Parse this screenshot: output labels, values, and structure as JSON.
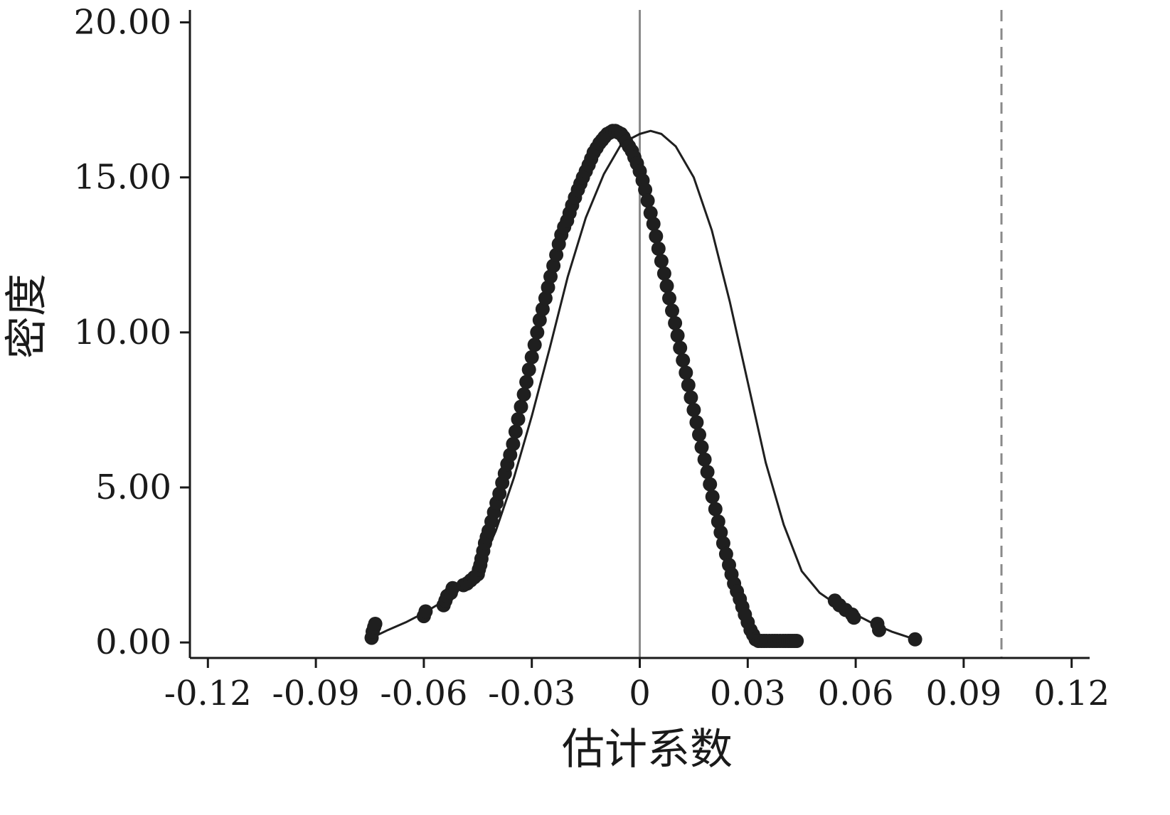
{
  "chart_data": {
    "type": "scatter",
    "xlabel": "估计系数",
    "ylabel": "密度",
    "xlim": [
      -0.125,
      0.125
    ],
    "ylim": [
      -0.5,
      20.4
    ],
    "x_ticks": [
      {
        "value": -0.12,
        "label": "-0.12"
      },
      {
        "value": -0.09,
        "label": "-0.09"
      },
      {
        "value": -0.06,
        "label": "-0.06"
      },
      {
        "value": -0.03,
        "label": "-0.03"
      },
      {
        "value": 0,
        "label": "0"
      },
      {
        "value": 0.03,
        "label": "0.03"
      },
      {
        "value": 0.06,
        "label": "0.06"
      },
      {
        "value": 0.09,
        "label": "0.09"
      },
      {
        "value": 0.12,
        "label": "0.12"
      }
    ],
    "y_ticks": [
      {
        "value": 0,
        "label": "0.00"
      },
      {
        "value": 5,
        "label": "5.00"
      },
      {
        "value": 10,
        "label": "10.00"
      },
      {
        "value": 15,
        "label": "15.00"
      },
      {
        "value": 20,
        "label": "20.00"
      }
    ],
    "reference_lines": [
      {
        "name": "zero-line",
        "x": 0,
        "style": "solid",
        "color": "#8a8a8a"
      },
      {
        "name": "estimate-line",
        "x": 0.1005,
        "style": "dashed",
        "color": "#8a8a8a"
      }
    ],
    "series": [
      {
        "marker": "circle",
        "color": "#1f1f1f",
        "x": [
          -0.0745,
          -0.0742,
          -0.0738,
          -0.0735,
          -0.06,
          -0.0595,
          -0.0545,
          -0.054,
          -0.0535,
          -0.0525,
          -0.052,
          -0.049,
          -0.048,
          -0.047,
          -0.046,
          -0.045,
          -0.0447,
          -0.0443,
          -0.044,
          -0.0435,
          -0.043,
          -0.0425,
          -0.042,
          -0.0412,
          -0.0405,
          -0.0398,
          -0.039,
          -0.0382,
          -0.0375,
          -0.0368,
          -0.036,
          -0.0352,
          -0.0345,
          -0.0338,
          -0.033,
          -0.0322,
          -0.0315,
          -0.0308,
          -0.03,
          -0.0292,
          -0.0285,
          -0.0278,
          -0.027,
          -0.0262,
          -0.0255,
          -0.0248,
          -0.024,
          -0.0232,
          -0.0225,
          -0.0218,
          -0.021,
          -0.0202,
          -0.0195,
          -0.0188,
          -0.018,
          -0.0172,
          -0.0165,
          -0.0158,
          -0.015,
          -0.0142,
          -0.0135,
          -0.0128,
          -0.012,
          -0.0112,
          -0.0105,
          -0.0098,
          -0.009,
          -0.0082,
          -0.0075,
          -0.0068,
          -0.006,
          -0.0052,
          -0.0045,
          -0.0038,
          -0.003,
          -0.0022,
          -0.0015,
          -0.0008,
          0.0,
          0.0008,
          0.0015,
          0.0022,
          0.003,
          0.0038,
          0.0045,
          0.0052,
          0.006,
          0.0068,
          0.0075,
          0.0082,
          0.009,
          0.0098,
          0.0105,
          0.0112,
          0.012,
          0.0128,
          0.0135,
          0.0142,
          0.015,
          0.0158,
          0.0165,
          0.0172,
          0.018,
          0.0188,
          0.0195,
          0.0202,
          0.021,
          0.0218,
          0.0225,
          0.0232,
          0.024,
          0.0248,
          0.0255,
          0.0262,
          0.027,
          0.0278,
          0.0285,
          0.0292,
          0.03,
          0.0308,
          0.0315,
          0.0322,
          0.033,
          0.0338,
          0.0345,
          0.0352,
          0.036,
          0.0368,
          0.0375,
          0.0382,
          0.039,
          0.0398,
          0.0405,
          0.0412,
          0.0418,
          0.0424,
          0.043,
          0.0436,
          0.0542,
          0.0555,
          0.0572,
          0.059,
          0.0595,
          0.066,
          0.0665,
          0.0765
        ],
        "y": [
          0.15,
          0.35,
          0.5,
          0.6,
          0.85,
          1.0,
          1.2,
          1.35,
          1.5,
          1.6,
          1.75,
          1.85,
          1.9,
          2.0,
          2.1,
          2.2,
          2.35,
          2.5,
          2.7,
          2.95,
          3.2,
          3.4,
          3.6,
          3.9,
          4.2,
          4.5,
          4.8,
          5.15,
          5.45,
          5.75,
          6.05,
          6.4,
          6.8,
          7.2,
          7.6,
          8.0,
          8.4,
          8.8,
          9.2,
          9.6,
          10.0,
          10.4,
          10.75,
          11.1,
          11.45,
          11.8,
          12.15,
          12.5,
          12.85,
          13.15,
          13.4,
          13.6,
          13.85,
          14.1,
          14.35,
          14.6,
          14.8,
          15.0,
          15.2,
          15.4,
          15.6,
          15.8,
          15.95,
          16.1,
          16.2,
          16.3,
          16.4,
          16.45,
          16.5,
          16.5,
          16.45,
          16.4,
          16.3,
          16.15,
          16.0,
          15.85,
          15.65,
          15.45,
          15.2,
          14.9,
          14.6,
          14.25,
          13.85,
          13.5,
          13.1,
          12.7,
          12.3,
          11.9,
          11.5,
          11.1,
          10.7,
          10.3,
          9.9,
          9.5,
          9.1,
          8.7,
          8.3,
          7.9,
          7.5,
          7.1,
          6.7,
          6.3,
          5.9,
          5.5,
          5.1,
          4.7,
          4.3,
          3.9,
          3.55,
          3.2,
          2.85,
          2.5,
          2.2,
          1.9,
          1.65,
          1.4,
          1.15,
          0.9,
          0.65,
          0.4,
          0.25,
          0.1,
          0.05,
          0.05,
          0.05,
          0.05,
          0.05,
          0.05,
          0.05,
          0.05,
          0.05,
          0.05,
          0.05,
          0.05,
          0.05,
          0.05,
          0.05,
          0.05,
          1.35,
          1.2,
          1.05,
          0.9,
          0.8,
          0.6,
          0.4,
          0.1
        ]
      },
      {
        "type": "line",
        "color": "#1f1f1f",
        "x": [
          -0.0745,
          -0.07,
          -0.065,
          -0.06,
          -0.055,
          -0.05,
          -0.045,
          -0.04,
          -0.035,
          -0.03,
          -0.025,
          -0.02,
          -0.015,
          -0.01,
          -0.005,
          0.0,
          0.003,
          0.006,
          0.01,
          0.015,
          0.02,
          0.025,
          0.03,
          0.035,
          0.04,
          0.045,
          0.05,
          0.055,
          0.06,
          0.065,
          0.07,
          0.0765
        ],
        "y": [
          0.15,
          0.4,
          0.65,
          0.95,
          1.3,
          1.75,
          2.3,
          3.6,
          5.3,
          7.3,
          9.5,
          11.8,
          13.7,
          15.1,
          16.1,
          16.4,
          16.5,
          16.4,
          16.0,
          15.0,
          13.3,
          11.0,
          8.4,
          5.8,
          3.8,
          2.3,
          1.6,
          1.2,
          0.9,
          0.6,
          0.35,
          0.1
        ]
      }
    ]
  }
}
